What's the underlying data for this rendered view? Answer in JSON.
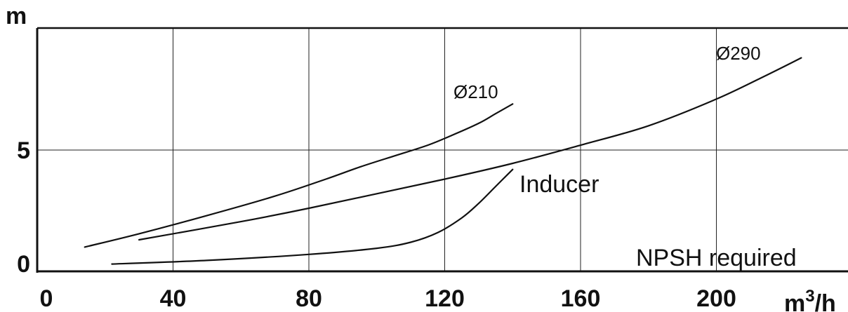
{
  "chart_data": {
    "type": "line",
    "title": "",
    "xlabel": "m³/h",
    "xlabel_base": "m",
    "xlabel_sup": "3",
    "xlabel_tail": "/h",
    "ylabel": "m",
    "xlim": [
      0,
      200
    ],
    "ylim": [
      0,
      10
    ],
    "grid": true,
    "x_ticks": [
      0,
      40,
      80,
      120,
      160,
      200
    ],
    "y_ticks": [
      0,
      5
    ],
    "series": [
      {
        "name": "Ø210",
        "x": [
          14,
          30,
          50,
          70,
          85,
          95,
          105,
          115,
          122,
          130,
          135,
          140
        ],
        "y": [
          1.0,
          1.55,
          2.3,
          3.1,
          3.8,
          4.3,
          4.75,
          5.2,
          5.6,
          6.1,
          6.5,
          6.9
        ]
      },
      {
        "name": "Ø290",
        "x": [
          30,
          60,
          80,
          100,
          120,
          140,
          160,
          180,
          200,
          215,
          225
        ],
        "y": [
          1.3,
          2.05,
          2.6,
          3.2,
          3.8,
          4.45,
          5.2,
          6.0,
          7.1,
          8.1,
          8.8
        ]
      },
      {
        "name": "Inducer",
        "x": [
          22,
          50,
          80,
          100,
          110,
          118,
          125,
          130,
          135,
          140
        ],
        "y": [
          0.3,
          0.45,
          0.7,
          0.95,
          1.2,
          1.6,
          2.2,
          2.8,
          3.5,
          4.2
        ]
      }
    ],
    "annotations": [
      {
        "text": "Ø210",
        "x": 124,
        "y": 7.4
      },
      {
        "text": "Ø290",
        "x": 200,
        "y": 8.8
      },
      {
        "text": "Inducer",
        "x": 155,
        "y": 3.5
      },
      {
        "text": "NPSH required",
        "x": 183,
        "y": 0.35
      }
    ]
  }
}
